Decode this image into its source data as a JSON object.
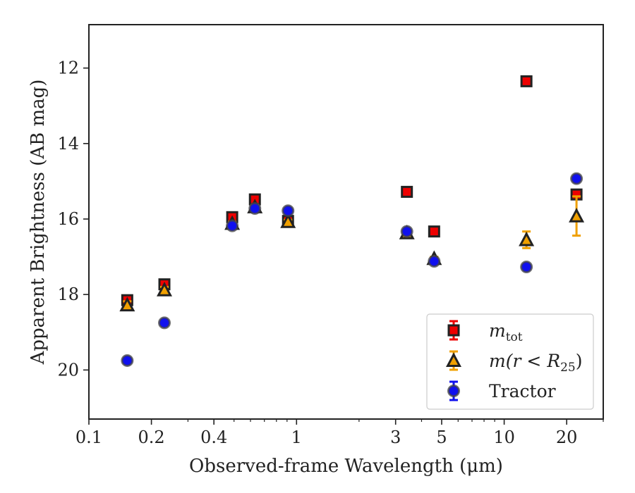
{
  "chart_data": {
    "type": "scatter",
    "xlabel": "Observed-frame Wavelength (μm)",
    "ylabel": "Apparent Brightness (AB mag)",
    "xscale": "log",
    "xlim": [
      0.1,
      30
    ],
    "ylim": [
      21.3,
      10.85
    ],
    "y_inverted": true,
    "grid": false,
    "legend_position": "lower-right",
    "x_ticks": [
      0.1,
      0.2,
      0.4,
      1,
      3,
      5,
      10,
      20
    ],
    "x_tick_labels": [
      "0.1",
      "0.2",
      "0.4",
      "1",
      "3",
      "5",
      "10",
      "20"
    ],
    "y_ticks": [
      12,
      14,
      16,
      18,
      20
    ],
    "y_tick_labels": [
      "12",
      "14",
      "16",
      "18",
      "20"
    ],
    "series": [
      {
        "name": "m_tot",
        "legend_label": "m",
        "legend_sub": "tot",
        "marker": "square",
        "face_color": "#ee0000",
        "edge_color": "#222222",
        "error_color": "#ee0000",
        "points": [
          {
            "x": 0.153,
            "y": 18.15,
            "err": 0.12
          },
          {
            "x": 0.231,
            "y": 17.73,
            "err": 0.1
          },
          {
            "x": 0.49,
            "y": 15.95,
            "err": 0.05
          },
          {
            "x": 0.63,
            "y": 15.48,
            "err": 0.05
          },
          {
            "x": 0.91,
            "y": 16.05,
            "err": 0.05
          },
          {
            "x": 3.4,
            "y": 15.28,
            "err": 0.05
          },
          {
            "x": 4.6,
            "y": 16.33,
            "err": 0.05
          },
          {
            "x": 12.8,
            "y": 12.35,
            "err": 0.05
          },
          {
            "x": 22.3,
            "y": 15.35,
            "err": 0.05
          }
        ]
      },
      {
        "name": "m(r<R25)",
        "legend_label": "m(r < R",
        "legend_sub": "25",
        "legend_suffix": ")",
        "marker": "triangle",
        "face_color": "#f0a000",
        "edge_color": "#222222",
        "error_color": "#f0a000",
        "points": [
          {
            "x": 0.153,
            "y": 18.28,
            "err": 0.1
          },
          {
            "x": 0.231,
            "y": 17.88,
            "err": 0.08
          },
          {
            "x": 0.49,
            "y": 16.12,
            "err": 0.05
          },
          {
            "x": 0.63,
            "y": 15.68,
            "err": 0.05
          },
          {
            "x": 0.91,
            "y": 16.07,
            "err": 0.05
          },
          {
            "x": 3.4,
            "y": 16.37,
            "err": 0.05
          },
          {
            "x": 4.6,
            "y": 17.05,
            "err": 0.05
          },
          {
            "x": 12.8,
            "y": 16.55,
            "err": 0.22
          },
          {
            "x": 22.3,
            "y": 15.92,
            "err": 0.52
          }
        ]
      },
      {
        "name": "Tractor",
        "legend_label": "Tractor",
        "marker": "circle",
        "face_color": "#1010ee",
        "edge_color": "#444444",
        "error_color": "#1010ee",
        "points": [
          {
            "x": 0.153,
            "y": 19.75,
            "err": 0.05
          },
          {
            "x": 0.231,
            "y": 18.75,
            "err": 0.05
          },
          {
            "x": 0.49,
            "y": 16.18,
            "err": 0.05
          },
          {
            "x": 0.63,
            "y": 15.72,
            "err": 0.05
          },
          {
            "x": 0.91,
            "y": 15.78,
            "err": 0.05
          },
          {
            "x": 3.4,
            "y": 16.33,
            "err": 0.05
          },
          {
            "x": 4.6,
            "y": 17.12,
            "err": 0.05
          },
          {
            "x": 12.8,
            "y": 17.27,
            "err": 0.05
          },
          {
            "x": 22.3,
            "y": 14.93,
            "err": 0.05
          }
        ]
      }
    ]
  }
}
